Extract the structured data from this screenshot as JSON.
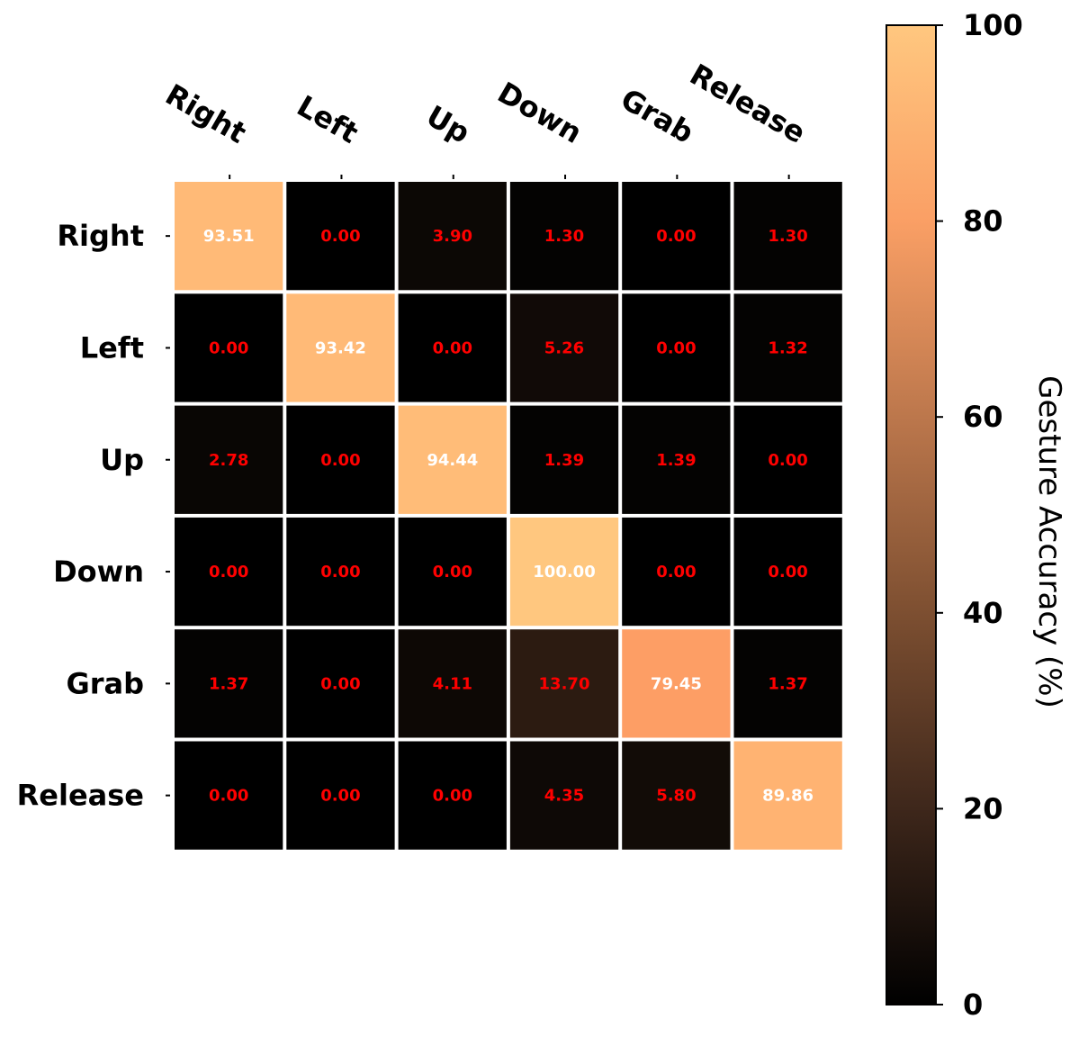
{
  "chart_data": {
    "type": "heatmap",
    "title": "",
    "xlabel": "",
    "ylabel": "",
    "x_categories": [
      "Right",
      "Left",
      "Up",
      "Down",
      "Grab",
      "Release"
    ],
    "y_categories": [
      "Right",
      "Left",
      "Up",
      "Down",
      "Grab",
      "Release"
    ],
    "values": [
      [
        93.51,
        0.0,
        3.9,
        1.3,
        0.0,
        1.3
      ],
      [
        0.0,
        93.42,
        0.0,
        5.26,
        0.0,
        1.32
      ],
      [
        2.78,
        0.0,
        94.44,
        1.39,
        1.39,
        0.0
      ],
      [
        0.0,
        0.0,
        0.0,
        100.0,
        0.0,
        0.0
      ],
      [
        1.37,
        0.0,
        4.11,
        13.7,
        79.45,
        1.37
      ],
      [
        0.0,
        0.0,
        0.0,
        4.35,
        5.8,
        89.86
      ]
    ],
    "value_format": "2 decimals",
    "colormap": "copper",
    "colorbar": {
      "label": "Gesture Accuracy (%)",
      "range": [
        0,
        100
      ],
      "ticks": [
        0,
        20,
        40,
        60,
        80,
        100
      ]
    },
    "label_colors": {
      "high_value": "#ffffff",
      "low_value": "#ff0000"
    },
    "grid_color": "#ffffff",
    "x_tick_position": "top"
  }
}
